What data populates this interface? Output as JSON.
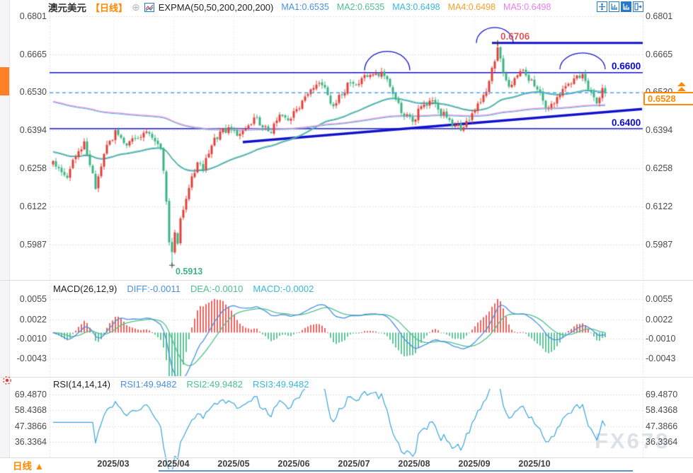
{
  "header": {
    "symbol": "澳元美元",
    "period_tag": "【日线】",
    "add_icon": "⊕",
    "indicator_label": "EXPMA(50,50,200,200,200)",
    "ma_values": [
      {
        "label": "MA1:0.6535",
        "color": "#4a90e2"
      },
      {
        "label": "MA2:0.6535",
        "color": "#4fc08d"
      },
      {
        "label": "MA3:0.6498",
        "color": "#39b9d6"
      },
      {
        "label": "MA4:0.6498",
        "color": "#f5a02a"
      },
      {
        "label": "MA5:0.6498",
        "color": "#ee7df0"
      }
    ]
  },
  "toolbar": {
    "icons": [
      "pan",
      "axis-scale",
      "axis-scale-active",
      "exit-right"
    ]
  },
  "price_tag": {
    "value": "0.6528"
  },
  "levels": {
    "peak_label": "0.6706",
    "resistance_label": "0.6600",
    "support_label": "0.6400",
    "low_label": "0.5913"
  },
  "macd_panel": {
    "title": "MACD(26,12,9)",
    "diff_label": "DIFF:-0.0011",
    "dea_label": "DEA:-0.0010",
    "macd_label": "MACD:-0.0002"
  },
  "rsi_panel": {
    "title": "RSI(14,14,14)",
    "rsi1_label": "RSI1:49.9482",
    "rsi2_label": "RSI2:49.9482",
    "rsi3_label": "RSI3:49.9482"
  },
  "bottom_bar": {
    "period": "日线",
    "arrow": "▲"
  },
  "watermark": "FX678",
  "colors": {
    "up": "#e0403a",
    "down": "#3cb482",
    "ema_fast": "#4fc08d",
    "ema_fast_under": "#4a90e2",
    "ema_slow": "#e99ae0",
    "ema_slow_under": "#39b9d6",
    "level_line": "#1212cc",
    "last_price_line": "#4da6ff",
    "grid": "#d8d8d8",
    "grid_v": "#e6e6e6",
    "axis_text": "#4a4a4a",
    "peak_label": "#e05a5a",
    "blue_label": "#0a0ad8",
    "low_label": "#3cb482",
    "orange": "#ff8a00",
    "diff_line": "#4a90e2",
    "dea_line": "#4fc08d",
    "macd_value": "#39b9d6",
    "rsi_line": "#38a3d8",
    "watermark": "#dde2e8",
    "marker": "#333333"
  },
  "chart_data": [
    {
      "type": "candlestick",
      "title": "AUD/USD daily (澳元美元 日线)",
      "y_ticks": [
        "0.6801",
        "0.6665",
        "0.6530",
        "0.6394",
        "0.6258",
        "0.6122",
        "0.5987"
      ],
      "x_ticks": [
        "2025/03",
        "2025/04",
        "2025/05",
        "2025/06",
        "2025/07",
        "2025/08",
        "2025/09",
        "2025/10"
      ],
      "ylim": [
        0.586,
        0.6835
      ],
      "candle_count": 196,
      "seed": 20251031,
      "anchors": [
        [
          0,
          0.6285
        ],
        [
          3,
          0.6245
        ],
        [
          5,
          0.6225
        ],
        [
          8,
          0.63
        ],
        [
          11,
          0.6355
        ],
        [
          13,
          0.627
        ],
        [
          15,
          0.6185
        ],
        [
          18,
          0.631
        ],
        [
          22,
          0.6395
        ],
        [
          26,
          0.634
        ],
        [
          30,
          0.6365
        ],
        [
          33,
          0.639
        ],
        [
          36,
          0.6355
        ],
        [
          38,
          0.633
        ],
        [
          39,
          0.625
        ],
        [
          40,
          0.614
        ],
        [
          41,
          0.5995
        ],
        [
          42,
          0.596
        ],
        [
          43,
          0.603
        ],
        [
          44,
          0.599
        ],
        [
          45,
          0.608
        ],
        [
          47,
          0.615
        ],
        [
          49,
          0.623
        ],
        [
          51,
          0.628
        ],
        [
          53,
          0.625
        ],
        [
          56,
          0.634
        ],
        [
          59,
          0.639
        ],
        [
          62,
          0.6405
        ],
        [
          65,
          0.6375
        ],
        [
          68,
          0.64
        ],
        [
          71,
          0.644
        ],
        [
          74,
          0.6405
        ],
        [
          77,
          0.6385
        ],
        [
          80,
          0.645
        ],
        [
          83,
          0.643
        ],
        [
          86,
          0.647
        ],
        [
          89,
          0.6515
        ],
        [
          92,
          0.6545
        ],
        [
          95,
          0.6555
        ],
        [
          97,
          0.652
        ],
        [
          99,
          0.648
        ],
        [
          102,
          0.652
        ],
        [
          105,
          0.6565
        ],
        [
          108,
          0.656
        ],
        [
          111,
          0.6585
        ],
        [
          114,
          0.6597
        ],
        [
          117,
          0.6588
        ],
        [
          119,
          0.655
        ],
        [
          121,
          0.6505
        ],
        [
          124,
          0.6445
        ],
        [
          127,
          0.6425
        ],
        [
          130,
          0.648
        ],
        [
          133,
          0.65
        ],
        [
          136,
          0.6468
        ],
        [
          139,
          0.644
        ],
        [
          142,
          0.6412
        ],
        [
          145,
          0.6405
        ],
        [
          148,
          0.6455
        ],
        [
          150,
          0.649
        ],
        [
          152,
          0.652
        ],
        [
          154,
          0.657
        ],
        [
          156,
          0.664
        ],
        [
          157,
          0.669
        ],
        [
          158,
          0.665
        ],
        [
          159,
          0.66
        ],
        [
          161,
          0.655
        ],
        [
          163,
          0.658
        ],
        [
          165,
          0.6605
        ],
        [
          167,
          0.659
        ],
        [
          169,
          0.6575
        ],
        [
          171,
          0.654
        ],
        [
          173,
          0.65
        ],
        [
          175,
          0.6475
        ],
        [
          177,
          0.649
        ],
        [
          179,
          0.652
        ],
        [
          182,
          0.656
        ],
        [
          185,
          0.659
        ],
        [
          187,
          0.6595
        ],
        [
          188,
          0.657
        ],
        [
          190,
          0.653
        ],
        [
          192,
          0.649
        ],
        [
          193,
          0.651
        ],
        [
          194,
          0.6545
        ],
        [
          195,
          0.6528
        ]
      ],
      "key_points": {
        "high": {
          "index": 157,
          "value": 0.6706,
          "label": "0.6706"
        },
        "low": {
          "index": 42,
          "value": 0.5913,
          "label": "0.5913"
        },
        "last": {
          "value": 0.6528
        }
      },
      "hlines": [
        {
          "value": 0.6706,
          "style": "solid-thick",
          "from_index": 155
        },
        {
          "value": 0.66,
          "style": "solid"
        },
        {
          "value": 0.64,
          "style": "solid"
        },
        {
          "value": 0.6528,
          "style": "dashed"
        }
      ],
      "trendline": {
        "from_index": 67,
        "from_value": 0.6352,
        "to_index": 208,
        "to_value": 0.647
      },
      "arcs": [
        {
          "center_index": 118,
          "base_value": 0.6608,
          "half_width": 8,
          "height": 0.0068
        },
        {
          "center_index": 156,
          "base_value": 0.6706,
          "half_width": 6.5,
          "height": 0.0055
        },
        {
          "center_index": 187,
          "base_value": 0.6612,
          "half_width": 8,
          "height": 0.0058
        }
      ],
      "overlays": {
        "ema_fast_period": 50,
        "ema_slow_period": 200,
        "ema_fast_seed": 0.632,
        "ema_slow_seed": 0.65
      }
    },
    {
      "type": "macd",
      "params": [
        26,
        12,
        9
      ],
      "y_ticks": [
        "0.0055",
        "0.0022",
        "-0.0010",
        "-0.0043"
      ],
      "last": {
        "diff": -0.0011,
        "dea": -0.001,
        "macd": -0.0002
      }
    },
    {
      "type": "rsi",
      "params": [
        14,
        14,
        14
      ],
      "y_ticks": [
        "69.4870",
        "58.4368",
        "47.3866",
        "36.3364"
      ],
      "last": 49.9482
    }
  ]
}
